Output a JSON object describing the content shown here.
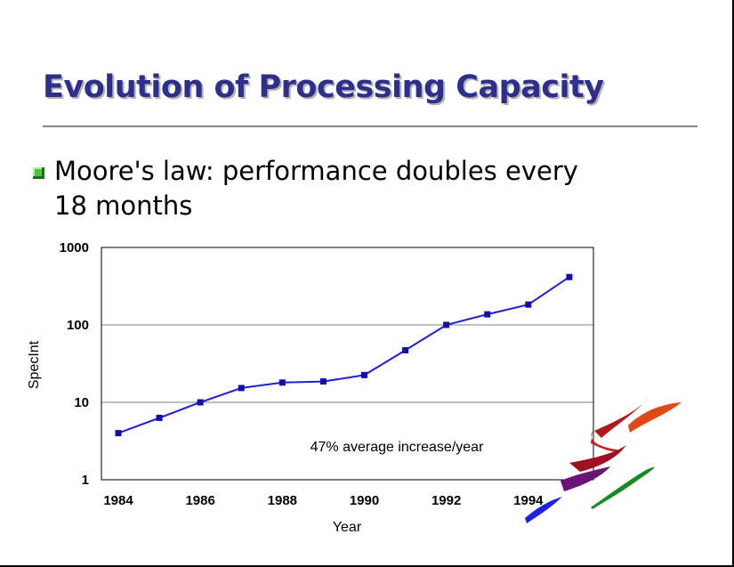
{
  "slide": {
    "title": "Evolution of Processing Capacity",
    "bullet": "Moore's law:  performance doubles every 18 months"
  },
  "colors": {
    "title": "#2e2e8c",
    "series": "#1f1fd6",
    "bullet": "#4cc23c"
  },
  "chart_data": {
    "type": "line",
    "x": [
      1984,
      1985,
      1986,
      1987,
      1988,
      1989,
      1990,
      1991,
      1992,
      1993,
      1994,
      1995
    ],
    "series": [
      {
        "values": [
          4,
          6.3,
          10,
          15.3,
          18,
          18.6,
          22.5,
          47,
          100,
          137,
          183,
          415
        ]
      }
    ],
    "xlabel": "Year",
    "ylabel": "SpecInt",
    "x_tick_labels": [
      "1984",
      "1986",
      "1988",
      "1990",
      "1992",
      "1994"
    ],
    "y_tick_labels": [
      "1",
      "10",
      "100",
      "1000"
    ],
    "y_scale": "log",
    "ylim": [
      1,
      1000
    ],
    "xlim": [
      1984,
      1996
    ],
    "grid": "horizontal",
    "annotation": "47% average increase/year",
    "legend": "none"
  }
}
